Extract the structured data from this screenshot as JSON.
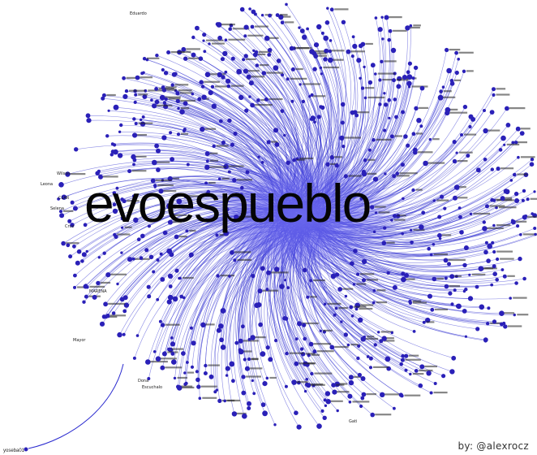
{
  "graph": {
    "hub_label": "evoespueblo",
    "credit": "by: @alexrocz",
    "colors": {
      "background": "#ffffff",
      "edge": "#2b2bcf",
      "node": "#2a20b8",
      "hub_glow": "#6f6cf0",
      "label": "#1a1a1a"
    },
    "visible_node_labels": [
      "Eduardo",
      "CLAR",
      "Selena",
      "Leona",
      "Wilson",
      "MARENA",
      "Dona",
      "Escuchalo",
      "Gati",
      "Mayor",
      "Cruz"
    ],
    "outlier_label": "yoseba01"
  }
}
